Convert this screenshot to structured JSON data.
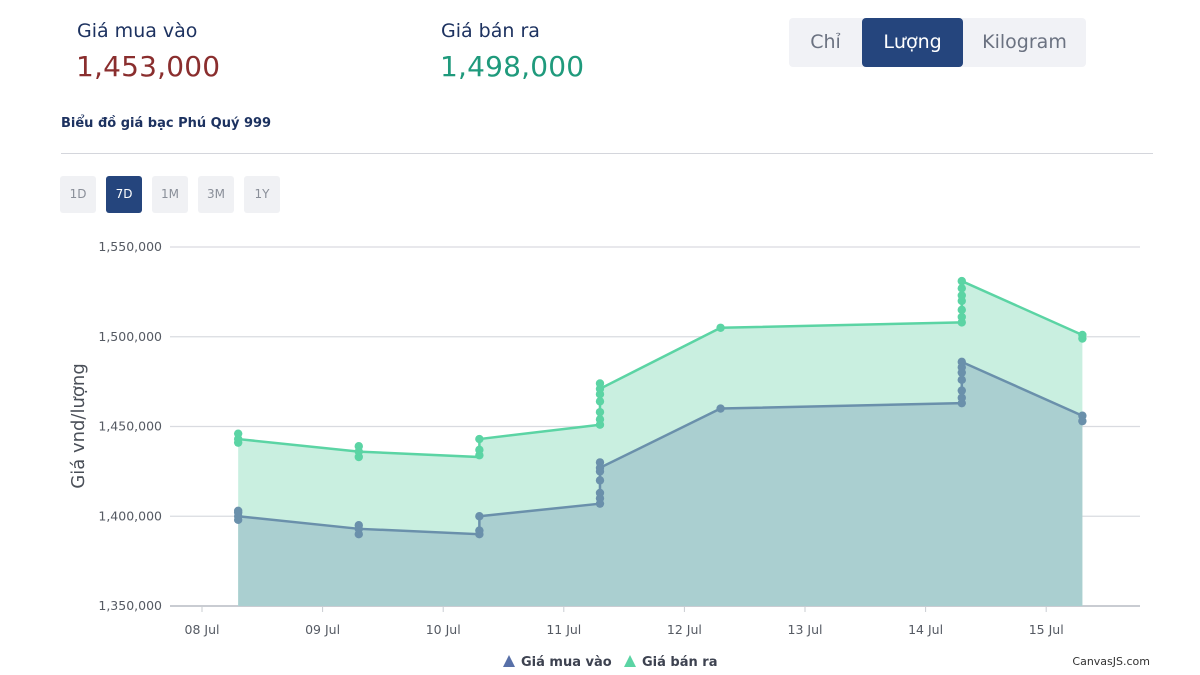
{
  "prices": {
    "buy_label": "Giá mua vào",
    "buy_value": "1,453,000",
    "sell_label": "Giá bán ra",
    "sell_value": "1,498,000"
  },
  "unit_toggle": {
    "options": [
      "Chỉ",
      "Lượng",
      "Kilogram"
    ],
    "selected": "Lượng"
  },
  "chart_title": "Biểu đồ giá bạc Phú Quý 999",
  "ranges": {
    "options": [
      "1D",
      "7D",
      "1M",
      "3M",
      "1Y"
    ],
    "selected": "7D"
  },
  "credit": "CanvasJS.com",
  "colors": {
    "buy_line": "#6a90ab",
    "buy_fill": "#aacfd0",
    "sell_line": "#5bd4a4",
    "sell_fill": "#c9efe0",
    "accent": "#25457d"
  },
  "chart_data": {
    "type": "area",
    "ylabel": "Giá vnd/lượng",
    "xlabel": "",
    "ylim": [
      1350000,
      1550000
    ],
    "yticks": [
      1350000,
      1400000,
      1450000,
      1500000,
      1550000
    ],
    "ytick_labels": [
      "1,350,000",
      "1,400,000",
      "1,450,000",
      "1,500,000",
      "1,550,000"
    ],
    "xticks": [
      "08 Jul",
      "09 Jul",
      "10 Jul",
      "11 Jul",
      "12 Jul",
      "13 Jul",
      "14 Jul",
      "15 Jul"
    ],
    "grid": true,
    "legend_position": "bottom-center",
    "series": [
      {
        "name": "Giá mua vào",
        "color_key": "buy",
        "points": [
          {
            "x": 0.3,
            "y": 1400000
          },
          {
            "x": 1.3,
            "y": 1393000
          },
          {
            "x": 2.3,
            "y": 1390000
          },
          {
            "x": 2.3,
            "y": 1400000
          },
          {
            "x": 3.3,
            "y": 1407000
          },
          {
            "x": 3.3,
            "y": 1427000
          },
          {
            "x": 4.3,
            "y": 1460000
          },
          {
            "x": 6.3,
            "y": 1463000
          },
          {
            "x": 6.3,
            "y": 1486000
          },
          {
            "x": 7.3,
            "y": 1456000
          }
        ],
        "markers": [
          {
            "x": 0.3,
            "y": 1398000
          },
          {
            "x": 0.3,
            "y": 1400000
          },
          {
            "x": 0.3,
            "y": 1402000
          },
          {
            "x": 0.3,
            "y": 1403000
          },
          {
            "x": 1.3,
            "y": 1390000
          },
          {
            "x": 1.3,
            "y": 1393000
          },
          {
            "x": 1.3,
            "y": 1395000
          },
          {
            "x": 2.3,
            "y": 1390000
          },
          {
            "x": 2.3,
            "y": 1392000
          },
          {
            "x": 2.3,
            "y": 1400000
          },
          {
            "x": 3.3,
            "y": 1407000
          },
          {
            "x": 3.3,
            "y": 1410000
          },
          {
            "x": 3.3,
            "y": 1413000
          },
          {
            "x": 3.3,
            "y": 1420000
          },
          {
            "x": 3.3,
            "y": 1425000
          },
          {
            "x": 3.3,
            "y": 1427000
          },
          {
            "x": 3.3,
            "y": 1430000
          },
          {
            "x": 4.3,
            "y": 1460000
          },
          {
            "x": 6.3,
            "y": 1463000
          },
          {
            "x": 6.3,
            "y": 1466000
          },
          {
            "x": 6.3,
            "y": 1470000
          },
          {
            "x": 6.3,
            "y": 1476000
          },
          {
            "x": 6.3,
            "y": 1480000
          },
          {
            "x": 6.3,
            "y": 1483000
          },
          {
            "x": 6.3,
            "y": 1486000
          },
          {
            "x": 7.3,
            "y": 1453000
          },
          {
            "x": 7.3,
            "y": 1456000
          }
        ]
      },
      {
        "name": "Giá bán ra",
        "color_key": "sell",
        "points": [
          {
            "x": 0.3,
            "y": 1443000
          },
          {
            "x": 1.3,
            "y": 1436000
          },
          {
            "x": 2.3,
            "y": 1433000
          },
          {
            "x": 2.3,
            "y": 1443000
          },
          {
            "x": 3.3,
            "y": 1451000
          },
          {
            "x": 3.3,
            "y": 1471000
          },
          {
            "x": 4.3,
            "y": 1505000
          },
          {
            "x": 6.3,
            "y": 1508000
          },
          {
            "x": 6.3,
            "y": 1531000
          },
          {
            "x": 7.3,
            "y": 1501000
          }
        ],
        "markers": [
          {
            "x": 0.3,
            "y": 1441000
          },
          {
            "x": 0.3,
            "y": 1443000
          },
          {
            "x": 0.3,
            "y": 1446000
          },
          {
            "x": 1.3,
            "y": 1433000
          },
          {
            "x": 1.3,
            "y": 1436000
          },
          {
            "x": 1.3,
            "y": 1439000
          },
          {
            "x": 2.3,
            "y": 1434000
          },
          {
            "x": 2.3,
            "y": 1437000
          },
          {
            "x": 2.3,
            "y": 1443000
          },
          {
            "x": 3.3,
            "y": 1451000
          },
          {
            "x": 3.3,
            "y": 1454000
          },
          {
            "x": 3.3,
            "y": 1458000
          },
          {
            "x": 3.3,
            "y": 1464000
          },
          {
            "x": 3.3,
            "y": 1468000
          },
          {
            "x": 3.3,
            "y": 1471000
          },
          {
            "x": 3.3,
            "y": 1474000
          },
          {
            "x": 4.3,
            "y": 1505000
          },
          {
            "x": 6.3,
            "y": 1508000
          },
          {
            "x": 6.3,
            "y": 1511000
          },
          {
            "x": 6.3,
            "y": 1515000
          },
          {
            "x": 6.3,
            "y": 1520000
          },
          {
            "x": 6.3,
            "y": 1523000
          },
          {
            "x": 6.3,
            "y": 1527000
          },
          {
            "x": 6.3,
            "y": 1531000
          },
          {
            "x": 7.3,
            "y": 1499000
          },
          {
            "x": 7.3,
            "y": 1501000
          }
        ]
      }
    ]
  }
}
